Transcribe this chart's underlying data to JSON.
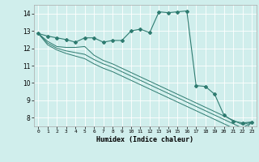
{
  "xlabel": "Humidex (Indice chaleur)",
  "background_color": "#d0eeec",
  "grid_color": "#ffffff",
  "line_color": "#2e7b70",
  "xlim": [
    -0.5,
    23.5
  ],
  "ylim": [
    7.5,
    14.5
  ],
  "xticks": [
    0,
    1,
    2,
    3,
    4,
    5,
    6,
    7,
    8,
    9,
    10,
    11,
    12,
    13,
    14,
    15,
    16,
    17,
    18,
    19,
    20,
    21,
    22,
    23
  ],
  "yticks": [
    8,
    9,
    10,
    11,
    12,
    13,
    14
  ],
  "series": [
    [
      12.85,
      12.7,
      12.6,
      12.5,
      12.35,
      12.6,
      12.6,
      12.35,
      12.45,
      12.45,
      13.0,
      13.1,
      12.9,
      14.1,
      14.05,
      14.1,
      14.15,
      9.85,
      9.8,
      9.35,
      8.15,
      7.8,
      7.7,
      7.75
    ],
    [
      12.85,
      12.4,
      12.1,
      12.05,
      12.05,
      12.1,
      11.6,
      11.3,
      11.1,
      10.85,
      10.6,
      10.35,
      10.1,
      9.85,
      9.6,
      9.35,
      9.1,
      8.85,
      8.6,
      8.35,
      8.1,
      7.85,
      7.6,
      7.75
    ],
    [
      12.85,
      12.3,
      12.0,
      11.85,
      11.75,
      11.65,
      11.35,
      11.1,
      10.9,
      10.65,
      10.4,
      10.15,
      9.9,
      9.65,
      9.4,
      9.15,
      8.9,
      8.65,
      8.4,
      8.15,
      7.9,
      7.65,
      7.4,
      7.75
    ],
    [
      12.85,
      12.2,
      11.9,
      11.7,
      11.55,
      11.4,
      11.1,
      10.85,
      10.65,
      10.4,
      10.15,
      9.9,
      9.65,
      9.4,
      9.15,
      8.9,
      8.65,
      8.4,
      8.15,
      7.9,
      7.65,
      7.4,
      7.15,
      7.75
    ]
  ]
}
